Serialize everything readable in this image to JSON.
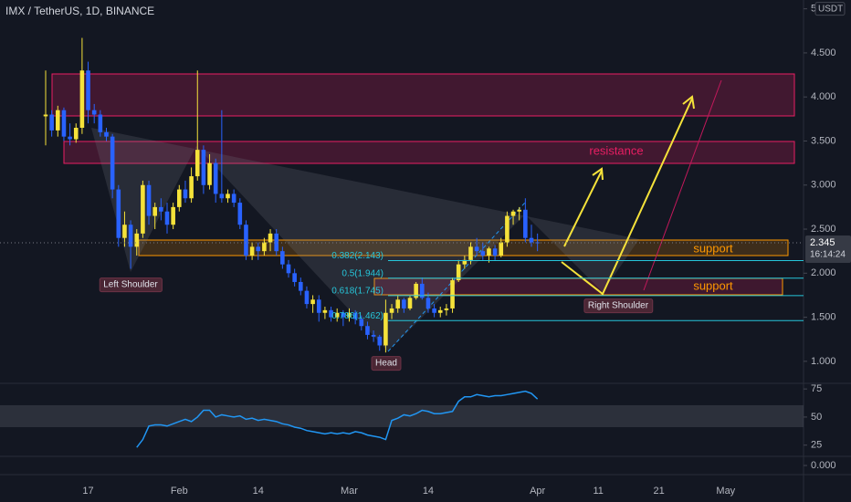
{
  "chart_data": [
    {
      "type": "candlestick",
      "title": "IMX / TetherUS, 1D, BINANCE",
      "categories": [
        null,
        null,
        null,
        null,
        null,
        null,
        null,
        "17",
        null,
        null,
        null,
        null,
        null,
        null,
        null,
        null,
        null,
        null,
        null,
        null,
        null,
        null,
        "Feb",
        null,
        null,
        null,
        null,
        null,
        null,
        null,
        null,
        null,
        null,
        null,
        null,
        "14",
        null,
        null,
        null,
        null,
        null,
        null,
        null,
        null,
        null,
        null,
        null,
        null,
        null,
        null,
        "Mar",
        null,
        null,
        null,
        null,
        null,
        null,
        null,
        null,
        null,
        null,
        null,
        null,
        "14",
        null,
        null,
        null,
        null,
        null,
        null,
        null,
        null,
        null,
        null,
        null,
        null,
        null,
        null,
        null,
        null,
        null,
        "Apr",
        null,
        null,
        null,
        null,
        null,
        null,
        null,
        null,
        null,
        "11",
        null,
        null,
        null,
        null,
        null,
        null,
        null,
        null,
        null,
        "21",
        null,
        null,
        null,
        null,
        null,
        null,
        null,
        null,
        null,
        null,
        "May",
        null,
        null,
        null,
        null,
        null,
        null,
        null,
        null,
        null,
        null,
        null,
        null,
        null
      ],
      "open": [
        3.78,
        3.8,
        3.62,
        3.85,
        3.55,
        3.52,
        3.65,
        4.3,
        3.85,
        3.8,
        3.6,
        3.55,
        2.95,
        2.4,
        2.55,
        2.3,
        2.45,
        3.0,
        2.65,
        2.75,
        2.7,
        2.55,
        2.75,
        2.95,
        2.85,
        3.1,
        3.4,
        3.0,
        3.25,
        2.9,
        2.85,
        2.9,
        2.8,
        2.55,
        2.2,
        2.3,
        2.25,
        2.35,
        2.45,
        2.25,
        2.1,
        2.0,
        1.9,
        1.8,
        1.65,
        1.7,
        1.55,
        1.58,
        1.5,
        1.55,
        1.5,
        1.55,
        1.48,
        1.4,
        1.3,
        1.28,
        1.18,
        1.55,
        1.6,
        1.7,
        1.6,
        1.72,
        1.88,
        1.72,
        1.6,
        1.55,
        1.58,
        1.6,
        1.92,
        2.1,
        2.15,
        2.3,
        2.25,
        2.2,
        2.28,
        2.2,
        2.35,
        2.65,
        2.7,
        2.72,
        2.4,
        2.35,
        null,
        null,
        null,
        null,
        null,
        null,
        null,
        null,
        null,
        null,
        null,
        null,
        null,
        null,
        null,
        null,
        null,
        null,
        null,
        null,
        null,
        null,
        null,
        null,
        null,
        null,
        null,
        null,
        null,
        null,
        null,
        null,
        null,
        null,
        null,
        null,
        null,
        null,
        null,
        null,
        null,
        null,
        null,
        null
      ],
      "high": [
        4.3,
        3.85,
        3.9,
        3.88,
        3.7,
        3.7,
        4.67,
        4.4,
        3.92,
        3.85,
        3.65,
        3.58,
        3.0,
        2.7,
        2.6,
        2.5,
        3.05,
        3.05,
        2.8,
        2.85,
        2.8,
        2.8,
        3.0,
        3.05,
        3.2,
        4.3,
        3.45,
        3.35,
        3.3,
        3.85,
        2.95,
        2.95,
        2.85,
        2.6,
        2.35,
        2.35,
        2.4,
        2.5,
        2.5,
        2.3,
        2.15,
        2.05,
        1.95,
        1.85,
        1.75,
        1.75,
        1.62,
        1.62,
        1.6,
        1.58,
        1.6,
        1.58,
        1.52,
        1.45,
        1.35,
        1.3,
        1.7,
        1.65,
        1.75,
        1.72,
        1.75,
        1.9,
        1.95,
        1.78,
        1.65,
        1.62,
        1.65,
        1.95,
        2.15,
        2.2,
        2.35,
        2.4,
        2.35,
        2.3,
        2.32,
        2.4,
        2.7,
        2.72,
        2.75,
        2.85,
        2.55,
        2.45,
        null,
        null,
        null,
        null,
        null,
        null,
        null,
        null,
        null,
        null,
        null,
        null,
        null,
        null,
        null,
        null,
        null,
        null,
        null,
        null,
        null,
        null,
        null,
        null,
        null,
        null,
        null,
        null,
        null,
        null,
        null,
        null,
        null,
        null,
        null,
        null,
        null,
        null,
        null,
        null,
        null,
        null,
        null,
        null
      ],
      "low": [
        3.45,
        3.55,
        3.55,
        3.5,
        3.45,
        3.48,
        3.58,
        3.7,
        3.7,
        3.55,
        3.5,
        2.85,
        2.3,
        2.3,
        2.05,
        2.2,
        2.4,
        2.55,
        2.5,
        2.6,
        2.45,
        2.5,
        2.7,
        2.8,
        2.8,
        3.05,
        2.9,
        2.95,
        2.8,
        2.8,
        2.8,
        2.75,
        2.5,
        2.15,
        2.15,
        2.15,
        2.2,
        2.25,
        2.2,
        2.05,
        1.95,
        1.85,
        1.75,
        1.6,
        1.55,
        1.45,
        1.48,
        1.45,
        1.45,
        1.4,
        1.45,
        1.42,
        1.35,
        1.25,
        1.22,
        1.12,
        1.1,
        1.48,
        1.55,
        1.55,
        1.58,
        1.7,
        1.7,
        1.55,
        1.5,
        1.5,
        1.52,
        1.55,
        1.9,
        2.05,
        2.1,
        2.2,
        2.15,
        2.12,
        2.15,
        2.18,
        2.3,
        2.55,
        2.6,
        2.35,
        2.3,
        2.25,
        null,
        null,
        null,
        null,
        null,
        null,
        null,
        null,
        null,
        null,
        null,
        null,
        null,
        null,
        null,
        null,
        null,
        null,
        null,
        null,
        null,
        null,
        null,
        null,
        null,
        null,
        null,
        null,
        null,
        null,
        null,
        null,
        null,
        null,
        null,
        null,
        null,
        null,
        null,
        null,
        null,
        null,
        null,
        null
      ],
      "close": [
        3.8,
        3.62,
        3.85,
        3.55,
        3.52,
        3.65,
        4.3,
        3.85,
        3.8,
        3.6,
        3.55,
        2.95,
        2.4,
        2.55,
        2.3,
        2.45,
        3.0,
        2.65,
        2.75,
        2.7,
        2.55,
        2.75,
        2.95,
        2.85,
        3.1,
        3.4,
        3.0,
        3.25,
        2.9,
        2.85,
        2.9,
        2.8,
        2.55,
        2.2,
        2.3,
        2.25,
        2.35,
        2.45,
        2.25,
        2.1,
        2.0,
        1.9,
        1.8,
        1.65,
        1.7,
        1.55,
        1.58,
        1.5,
        1.55,
        1.5,
        1.55,
        1.48,
        1.4,
        1.3,
        1.28,
        1.18,
        1.55,
        1.6,
        1.7,
        1.6,
        1.72,
        1.88,
        1.72,
        1.6,
        1.55,
        1.58,
        1.6,
        1.92,
        2.1,
        2.15,
        2.3,
        2.25,
        2.2,
        2.28,
        2.2,
        2.35,
        2.65,
        2.7,
        2.72,
        2.4,
        2.35,
        2.345,
        null,
        null,
        null,
        null,
        null,
        null,
        null,
        null,
        null,
        null,
        null,
        null,
        null,
        null,
        null,
        null,
        null,
        null,
        null,
        null,
        null,
        null,
        null,
        null,
        null,
        null,
        null,
        null,
        null,
        null,
        null,
        null,
        null,
        null,
        null,
        null,
        null,
        null,
        null,
        null,
        null,
        null,
        null,
        null
      ],
      "up_color": "#f5e23a",
      "down_color": "#2962ff",
      "ylim": [
        0.75,
        5.1
      ],
      "yticks": [
        {
          "value": 1,
          "label": "1.000"
        },
        {
          "value": 1.5,
          "label": "1.500"
        },
        {
          "value": 2,
          "label": "2.000"
        },
        {
          "value": 2.5,
          "label": "2.500"
        },
        {
          "value": 3,
          "label": "3.000"
        },
        {
          "value": 3.5,
          "label": "3.500"
        },
        {
          "value": 4,
          "label": "4.000"
        },
        {
          "value": 4.5,
          "label": "4.500"
        },
        5
      ],
      "y_unit": "USDT",
      "last_price": 2.345,
      "countdown": "16:14:24",
      "fib_levels": [
        {
          "label": "0.382(2.143)",
          "value": 2.143
        },
        {
          "label": "0.5(1.944)",
          "value": 1.944
        },
        {
          "label": "0.618(1.745)",
          "value": 1.745
        },
        {
          "label": "0.786(1.462)",
          "value": 1.462
        }
      ],
      "annotations": [
        "Left Shoulder",
        "Head",
        "Right Shoulder",
        "resistance",
        "support",
        "support"
      ]
    },
    {
      "type": "line",
      "color": "#2196f3",
      "values": [
        null,
        null,
        null,
        null,
        null,
        null,
        null,
        null,
        null,
        null,
        null,
        null,
        null,
        null,
        null,
        23,
        30,
        42,
        43,
        43,
        42,
        44,
        46,
        48,
        46,
        50,
        56,
        56,
        50,
        52,
        51,
        50,
        51,
        48,
        49,
        47,
        48,
        47,
        46,
        44,
        43,
        41,
        40,
        38,
        37,
        36,
        35,
        36,
        35,
        36,
        35,
        37,
        36,
        34,
        33,
        32,
        30,
        47,
        49,
        52,
        51,
        53,
        56,
        55,
        53,
        53,
        54,
        55,
        64,
        68,
        68,
        70,
        69,
        68,
        69,
        69,
        70,
        71,
        72,
        73,
        71,
        66,
        null,
        null,
        null,
        null,
        null,
        null,
        null,
        null,
        null,
        null,
        null,
        null,
        null,
        null,
        null,
        null,
        null,
        null,
        null,
        null,
        null,
        null,
        null,
        null,
        null,
        null,
        null,
        null,
        null,
        null,
        null,
        null,
        null,
        null,
        null,
        null,
        null,
        null,
        null,
        null,
        null,
        null,
        null,
        null
      ],
      "ylim": [
        15,
        80
      ],
      "yticks": [
        25,
        50,
        75
      ]
    },
    {
      "type": "pane",
      "ylim": [
        -1,
        1
      ],
      "yticks": [
        {
          "value": 0,
          "label": "0.000"
        }
      ]
    }
  ]
}
